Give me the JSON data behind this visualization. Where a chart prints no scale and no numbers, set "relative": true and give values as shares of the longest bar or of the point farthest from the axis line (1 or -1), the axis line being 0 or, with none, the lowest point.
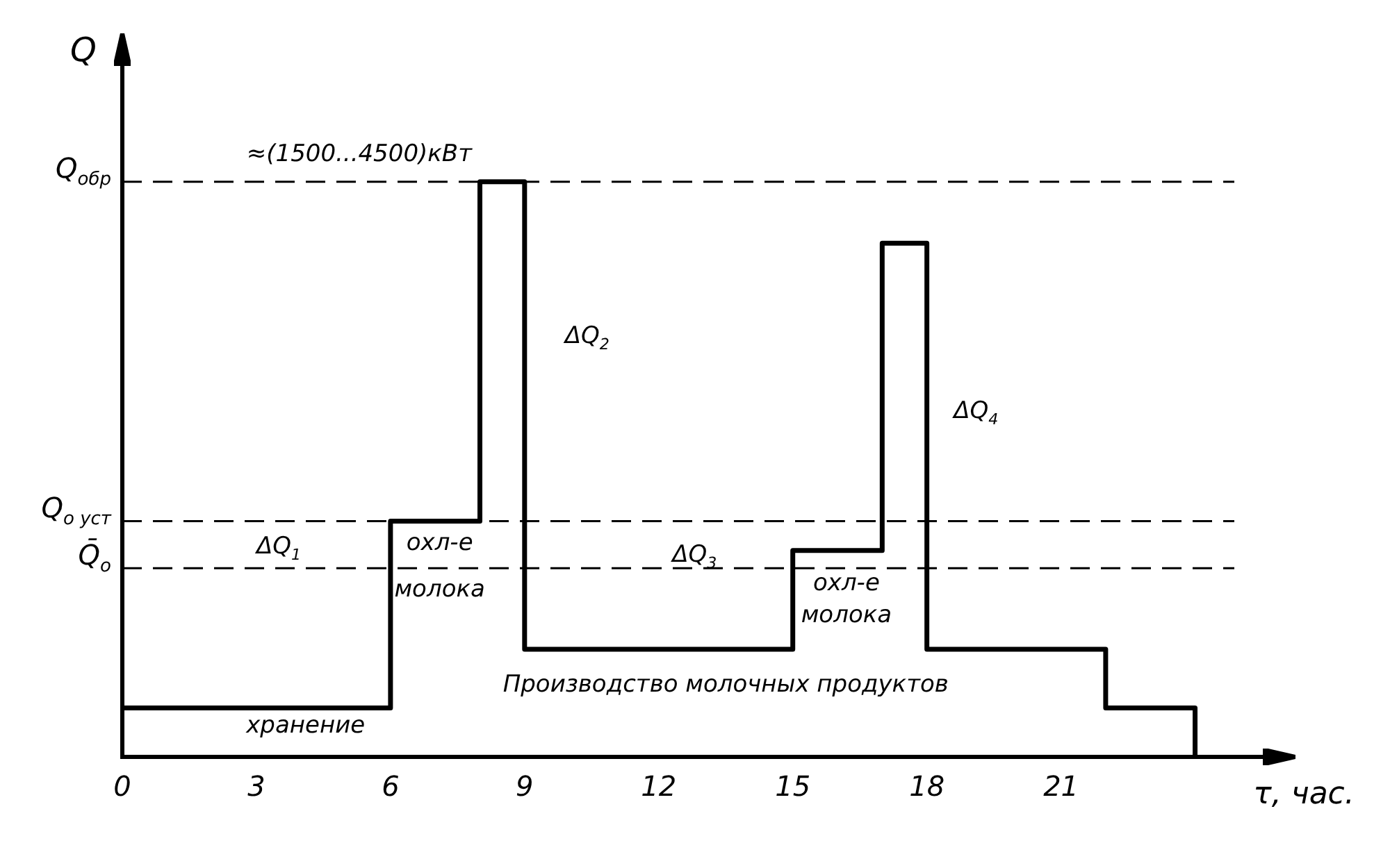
{
  "chart_data": {
    "type": "step",
    "relative": true,
    "ylabel": "Q",
    "xlabel": "τ, час.",
    "x": [
      0,
      6,
      8,
      9,
      15,
      17,
      18,
      22,
      24
    ],
    "series": [
      {
        "color": "#000000",
        "values": [
          0.085,
          0.41,
          1,
          0.187,
          0.359,
          0.893,
          0.187,
          0.085,
          0
        ]
      }
    ],
    "xlim": [
      0,
      25.5
    ],
    "xticks": [
      0,
      3,
      6,
      9,
      12,
      15,
      18,
      21
    ],
    "ref_lines": [
      {
        "axis": "y",
        "value": 1,
        "label": "Q$_{обр}$",
        "line_style": "dashed"
      },
      {
        "axis": "y",
        "value": 0.41,
        "label": "Q$_{о уст}$",
        "line_style": "dashed"
      },
      {
        "axis": "y",
        "value": 0.328,
        "label": "Q̄$_{о}$",
        "line_style": "dashed"
      }
    ],
    "annotations": [
      "≈(1500...4500)кВт",
      "ΔQ$_{1}$",
      "ΔQ$_{2}$",
      "ΔQ$_{3}$",
      "ΔQ$_{4}$",
      "охл-е",
      "молока",
      "охл-е",
      "молока",
      "Производство молочных продуктов",
      "хранение"
    ],
    "legend": false,
    "grid": false,
    "line_style": "solid",
    "marker": "none"
  }
}
